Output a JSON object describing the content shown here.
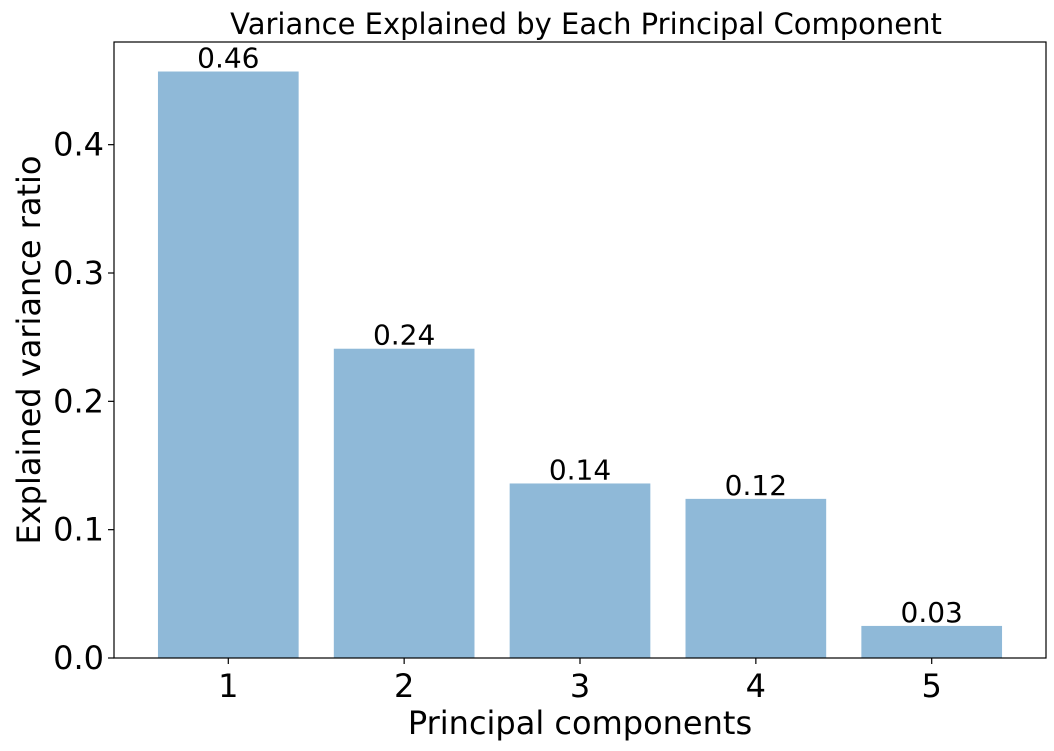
{
  "chart_data": {
    "type": "bar",
    "title": "Variance Explained by Each Principal Component",
    "xlabel": "Principal components",
    "ylabel": "Explained variance ratio",
    "categories": [
      "1",
      "2",
      "3",
      "4",
      "5"
    ],
    "values": [
      0.457,
      0.241,
      0.136,
      0.124,
      0.025
    ],
    "data_labels": [
      "0.46",
      "0.24",
      "0.14",
      "0.12",
      "0.03"
    ],
    "ylim": [
      0,
      0.48
    ],
    "yticks": [
      0.0,
      0.1,
      0.2,
      0.3,
      0.4
    ],
    "ytick_labels": [
      "0.0",
      "0.1",
      "0.2",
      "0.3",
      "0.4"
    ],
    "bar_color": "#8fb9d8",
    "grid": false,
    "legend": "none"
  }
}
